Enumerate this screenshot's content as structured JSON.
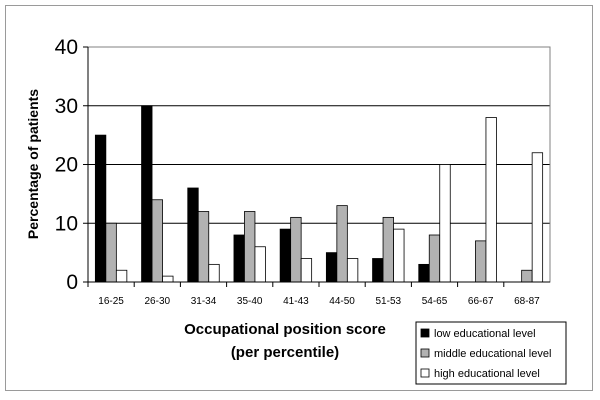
{
  "chart_data": {
    "type": "bar",
    "title": "",
    "ylabel": "Percentage of patients",
    "xlabel_lines": [
      "Occupational position score",
      "(per percentile)"
    ],
    "ylim": [
      0,
      40
    ],
    "yticks": [
      0,
      10,
      20,
      30,
      40
    ],
    "grid": true,
    "legend_position": "bottom-right",
    "categories": [
      "16-25",
      "26-30",
      "31-34",
      "35-40",
      "41-43",
      "44-50",
      "51-53",
      "54-65",
      "66-67",
      "68-87"
    ],
    "series": [
      {
        "name": "low educational level",
        "color": "#000000",
        "values": [
          25,
          30,
          16,
          8,
          9,
          5,
          4,
          3,
          0,
          0
        ]
      },
      {
        "name": "middle educational level",
        "color": "#b2b2b2",
        "values": [
          10,
          14,
          12,
          12,
          11,
          13,
          11,
          8,
          7,
          2
        ]
      },
      {
        "name": "high educational level",
        "color": "#ffffff",
        "values": [
          2,
          1,
          3,
          6,
          4,
          4,
          9,
          20,
          28,
          22
        ]
      }
    ]
  }
}
